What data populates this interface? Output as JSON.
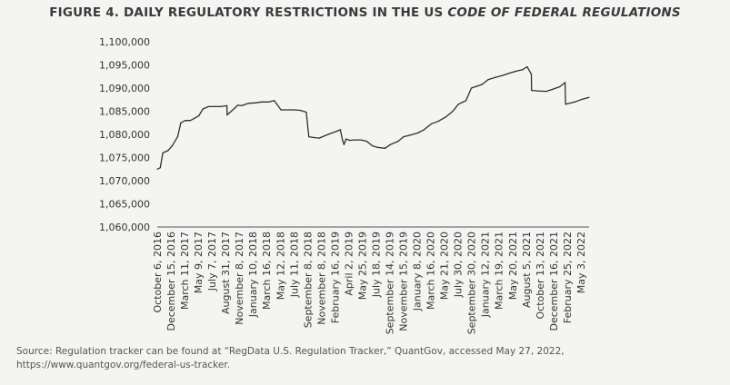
{
  "title": {
    "prefix": "FIGURE 4. DAILY REGULATORY RESTRICTIONS IN THE US ",
    "emphasis": "CODE OF FEDERAL REGULATIONS"
  },
  "source": "Source: Regulation tracker can be found at “RegData U.S. Regulation Tracker,” QuantGov, accessed May 27, 2022, https://www.quantgov.org/federal-us-tracker.",
  "chart_data": {
    "type": "line",
    "title": "FIGURE 4. DAILY REGULATORY RESTRICTIONS IN THE US CODE OF FEDERAL REGULATIONS",
    "xlabel": "",
    "ylabel": "",
    "ylim": [
      1060000,
      1100000
    ],
    "yticks": [
      1060000,
      1065000,
      1070000,
      1075000,
      1080000,
      1085000,
      1090000,
      1095000,
      1100000
    ],
    "ytick_labels": [
      "1,060,000",
      "1,065,000",
      "1,070,000",
      "1,075,000",
      "1,080,000",
      "1,085,000",
      "1,090,000",
      "1,095,000",
      "1,100,000"
    ],
    "xlim": [
      "2016-10-06",
      "2022-05-03"
    ],
    "xtick_labels": [
      "October 6, 2016",
      "December 15, 2016",
      "March 11, 2017",
      "May 9, 2017",
      "July 7, 2017",
      "August 31, 2017",
      "November 8, 2017",
      "January 10, 2018",
      "March 16, 2018",
      "May 12, 2018",
      "July 11, 2018",
      "September 8, 2018",
      "November 8, 2018",
      "February 16, 2019",
      "April 2, 2019",
      "May 25, 2019",
      "July 18, 2019",
      "September 14, 2019",
      "November 15, 2019",
      "January 8, 2020",
      "March 16, 2020",
      "May 21, 2020",
      "July 30, 2020",
      "September 30, 2020",
      "January 12, 2021",
      "March 19, 2021",
      "May 20, 2021",
      "August 5, 2021",
      "October 13, 2021",
      "December 16, 2021",
      "February 25, 2022",
      "May 3, 2022"
    ],
    "grid": false,
    "legend": "none",
    "line_color": "#2f2f2f",
    "series": [
      {
        "x": [
          "2016-10-06",
          "2016-10-20",
          "2016-11-01",
          "2016-11-25",
          "2016-12-15",
          "2017-01-10",
          "2017-01-25",
          "2017-02-15",
          "2017-03-11",
          "2017-04-01",
          "2017-04-20",
          "2017-05-09",
          "2017-06-05",
          "2017-07-07",
          "2017-08-01",
          "2017-08-30",
          "2017-08-31",
          "2017-09-20",
          "2017-10-20",
          "2017-11-08",
          "2017-12-10",
          "2018-01-10",
          "2018-02-10",
          "2018-03-16",
          "2018-04-10",
          "2018-05-12",
          "2018-06-01",
          "2018-07-11",
          "2018-08-10",
          "2018-09-08",
          "2018-09-20",
          "2018-10-20",
          "2018-11-08",
          "2018-12-20",
          "2019-01-20",
          "2019-02-16",
          "2019-02-25",
          "2019-03-05",
          "2019-03-15",
          "2019-04-02",
          "2019-04-20",
          "2019-05-25",
          "2019-06-20",
          "2019-07-18",
          "2019-08-10",
          "2019-09-14",
          "2019-10-10",
          "2019-11-15",
          "2019-12-10",
          "2020-01-08",
          "2020-02-15",
          "2020-03-16",
          "2020-04-20",
          "2020-05-21",
          "2020-06-25",
          "2020-07-30",
          "2020-08-25",
          "2020-09-30",
          "2020-10-25",
          "2020-11-20",
          "2020-12-15",
          "2021-01-12",
          "2021-02-15",
          "2021-03-19",
          "2021-04-20",
          "2021-05-20",
          "2021-06-25",
          "2021-07-15",
          "2021-08-04",
          "2021-08-05",
          "2021-09-01",
          "2021-10-13",
          "2021-11-10",
          "2021-12-16",
          "2022-01-10",
          "2022-01-12",
          "2022-02-25",
          "2022-03-25",
          "2022-05-03"
        ],
        "values": [
          1072500,
          1072800,
          1076000,
          1076500,
          1077500,
          1079500,
          1082500,
          1083000,
          1083000,
          1083500,
          1084000,
          1085500,
          1086000,
          1086000,
          1086000,
          1086200,
          1084200,
          1085000,
          1086300,
          1086200,
          1086700,
          1086800,
          1087000,
          1087000,
          1087300,
          1085300,
          1085300,
          1085300,
          1085200,
          1084800,
          1079500,
          1079300,
          1079200,
          1080000,
          1080500,
          1081000,
          1079000,
          1077800,
          1079000,
          1078700,
          1078800,
          1078800,
          1078500,
          1077500,
          1077200,
          1077000,
          1077800,
          1078500,
          1079500,
          1079800,
          1080300,
          1081000,
          1082300,
          1082800,
          1083700,
          1085000,
          1086500,
          1087300,
          1090000,
          1090400,
          1090800,
          1091800,
          1092300,
          1092700,
          1093200,
          1093600,
          1094000,
          1094600,
          1093000,
          1089500,
          1089400,
          1089300,
          1089700,
          1090300,
          1091200,
          1086500,
          1087000,
          1087500,
          1088000
        ]
      }
    ]
  }
}
